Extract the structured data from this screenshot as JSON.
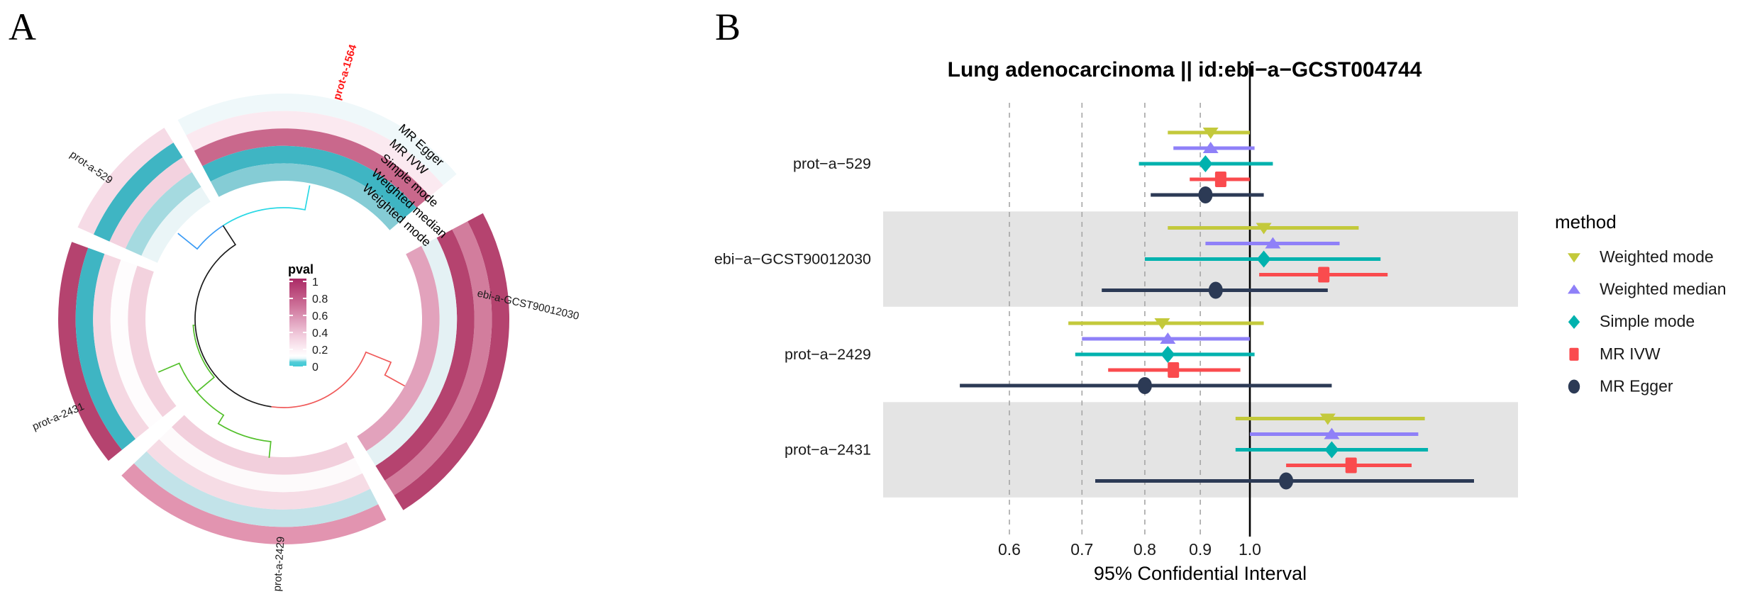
{
  "panels": {
    "a_label": "A",
    "b_label": "B"
  },
  "chart_data": [
    {
      "type": "heatmap",
      "layout": "circular",
      "panel": "A",
      "legend_title": "pval",
      "legend_tick_labels": [
        "1",
        "0.8",
        "0.6",
        "0.4",
        "0.2",
        "0"
      ],
      "legend_colors": {
        "high": "#ab2a66",
        "mid": "#ffffff",
        "low": "#3fc9d5"
      },
      "tracks_outer_to_inner": [
        "MR Egger",
        "MR IVW",
        "Simple mode",
        "Weighted median",
        "Weighted mode"
      ],
      "sectors": [
        {
          "label": "prot-a-1564",
          "label_color": "#ff1a1a",
          "pval_by_track": [
            0.03,
            0.12,
            0.55,
            0.005,
            0.02
          ],
          "cell_colors": [
            "#eff8fa",
            "#fbe9f0",
            "#c9688c",
            "#3fb5c3",
            "#85ccd5"
          ]
        },
        {
          "label": "ebi-a-GCST90012030",
          "label_color": "#1a1a1a",
          "pval_by_track": [
            0.75,
            0.45,
            0.75,
            0.03,
            0.35
          ],
          "cell_colors": [
            "#b5436f",
            "#d27d9d",
            "#b5436f",
            "#e4f1f4",
            "#e2a2bc"
          ]
        },
        {
          "label": "prot-a-2429",
          "label_color": "#1a1a1a",
          "pval_by_track": [
            0.3,
            0.02,
            0.15,
            0.08,
            0.2
          ],
          "cell_colors": [
            "#e294b0",
            "#c2e3e9",
            "#f6dce5",
            "#fdfafb",
            "#f2cfdc"
          ]
        },
        {
          "label": "prot-a-2431",
          "label_color": "#1a1a1a",
          "pval_by_track": [
            0.8,
            0.005,
            0.18,
            0.07,
            0.15
          ],
          "cell_colors": [
            "#b5436f",
            "#3fb5c3",
            "#f5d8e2",
            "#fefcfd",
            "#f3d2de"
          ]
        },
        {
          "label": "prot-a-529",
          "label_color": "#1a1a1a",
          "pval_by_track": [
            0.15,
            0.005,
            0.18,
            0.02,
            0.04
          ],
          "cell_colors": [
            "#f6dbe6",
            "#3fb5c3",
            "#f3d2df",
            "#a5dae0",
            "#eaf5f7"
          ]
        }
      ],
      "dendrogram_branch_colors": [
        "#29d8e5",
        "#3a9bf5",
        "#1a1a1a",
        "#53c02b",
        "#f05a5a"
      ]
    },
    {
      "type": "scatter",
      "subtype": "forest",
      "panel": "B",
      "title": "Lung adenocarcinoma || id:ebi−a−GCST004744",
      "xlabel": "95% Confidential Interval",
      "x_scale": "log",
      "xlim": [
        0.46,
        1.77
      ],
      "x_ticks": [
        0.6,
        0.7,
        0.8,
        0.9,
        1.0
      ],
      "x_tick_labels": [
        "0.6",
        "0.7",
        "0.8",
        "0.9",
        "1.0"
      ],
      "reference_line": 1.0,
      "legend_title": "method",
      "methods": [
        {
          "name": "Weighted mode",
          "color": "#c3c93b",
          "shape": "triangle-down"
        },
        {
          "name": "Weighted median",
          "color": "#8f80f8",
          "shape": "triangle-up"
        },
        {
          "name": "Simple mode",
          "color": "#00b2ae",
          "shape": "diamond"
        },
        {
          "name": "MR IVW",
          "color": "#fa4b4e",
          "shape": "square"
        },
        {
          "name": "MR Egger",
          "color": "#2c3a55",
          "shape": "circle"
        }
      ],
      "rows": [
        {
          "label": "prot−a−529",
          "shaded": false,
          "estimates": [
            [
              0.84,
              0.92,
              1.0
            ],
            [
              0.85,
              0.92,
              1.01
            ],
            [
              0.79,
              0.91,
              1.05
            ],
            [
              0.88,
              0.94,
              1.0
            ],
            [
              0.81,
              0.91,
              1.03
            ]
          ]
        },
        {
          "label": "ebi−a−GCST90012030",
          "shaded": true,
          "estimates": [
            [
              0.84,
              1.03,
              1.26
            ],
            [
              0.91,
              1.05,
              1.21
            ],
            [
              0.8,
              1.03,
              1.32
            ],
            [
              1.02,
              1.17,
              1.34
            ],
            [
              0.73,
              0.93,
              1.18
            ]
          ]
        },
        {
          "label": "prot−a−2429",
          "shaded": false,
          "estimates": [
            [
              0.68,
              0.83,
              1.03
            ],
            [
              0.7,
              0.84,
              1.0
            ],
            [
              0.69,
              0.84,
              1.01
            ],
            [
              0.74,
              0.85,
              0.98
            ],
            [
              0.54,
              0.8,
              1.19
            ]
          ]
        },
        {
          "label": "prot−a−2431",
          "shaded": true,
          "estimates": [
            [
              0.97,
              1.18,
              1.45
            ],
            [
              1.0,
              1.19,
              1.43
            ],
            [
              0.97,
              1.19,
              1.46
            ],
            [
              1.08,
              1.24,
              1.41
            ],
            [
              0.72,
              1.08,
              1.61
            ]
          ]
        }
      ]
    }
  ]
}
